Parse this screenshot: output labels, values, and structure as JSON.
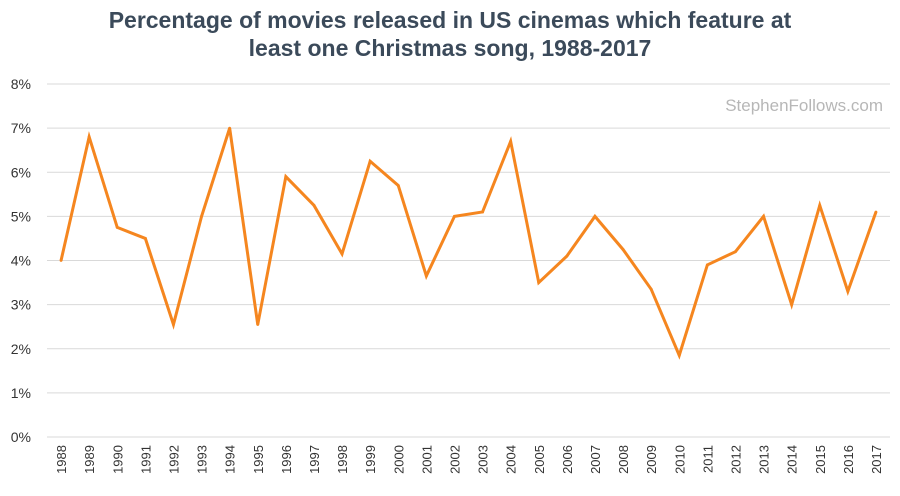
{
  "chart_data": {
    "type": "line",
    "title": "Percentage of movies released in US cinemas which feature at\nleast one Christmas song, 1988-2017",
    "watermark": "StephenFollows.com",
    "x": [
      "1988",
      "1989",
      "1990",
      "1991",
      "1992",
      "1993",
      "1994",
      "1995",
      "1996",
      "1997",
      "1998",
      "1999",
      "2000",
      "2001",
      "2002",
      "2003",
      "2004",
      "2005",
      "2006",
      "2007",
      "2008",
      "2009",
      "2010",
      "2011",
      "2012",
      "2013",
      "2014",
      "2015",
      "2016",
      "2017"
    ],
    "series": [
      {
        "values": [
          4.0,
          6.8,
          4.75,
          4.5,
          2.55,
          5.0,
          7.0,
          2.55,
          5.9,
          5.25,
          4.15,
          6.25,
          5.7,
          3.65,
          5.0,
          5.1,
          6.7,
          3.5,
          4.1,
          5.0,
          4.25,
          3.35,
          1.85,
          3.9,
          4.2,
          5.0,
          3.0,
          5.25,
          3.3,
          5.1
        ],
        "color": "#f5861f"
      }
    ],
    "ylim": [
      0,
      8
    ],
    "yticks": [
      "0%",
      "1%",
      "2%",
      "3%",
      "4%",
      "5%",
      "6%",
      "7%",
      "8%"
    ],
    "grid": true,
    "gridColor": "#d9d9d9",
    "legend": "none"
  }
}
